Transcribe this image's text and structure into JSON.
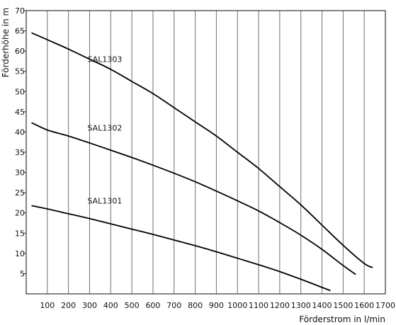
{
  "chart_data": {
    "type": "line",
    "title": "",
    "xlabel": "Förderstrom in l/min",
    "ylabel": "Förderhöhe in m",
    "xlim": [
      0,
      1700
    ],
    "ylim": [
      0,
      70
    ],
    "xticks": [
      100,
      200,
      300,
      400,
      500,
      600,
      700,
      800,
      900,
      1000,
      1100,
      1200,
      1300,
      1400,
      1500,
      1600,
      1700
    ],
    "yticks": [
      5,
      10,
      15,
      20,
      25,
      30,
      35,
      40,
      45,
      50,
      55,
      60,
      65,
      70
    ],
    "grid": "vertical",
    "series": [
      {
        "name": "SAL1303",
        "x": [
          25,
          100,
          200,
          300,
          400,
          500,
          600,
          700,
          800,
          900,
          1000,
          1100,
          1200,
          1300,
          1400,
          1500,
          1600,
          1640
        ],
        "y": [
          64.5,
          62.8,
          60.5,
          58,
          55.5,
          52.5,
          49.5,
          46,
          42.5,
          39,
          35,
          31,
          26.5,
          22,
          17,
          12,
          7.5,
          6.5
        ]
      },
      {
        "name": "SAL1302",
        "x": [
          25,
          100,
          200,
          300,
          400,
          500,
          600,
          700,
          800,
          900,
          1000,
          1100,
          1200,
          1300,
          1400,
          1500,
          1560
        ],
        "y": [
          42.3,
          40.5,
          39,
          37.3,
          35.5,
          33.7,
          31.8,
          29.8,
          27.7,
          25.4,
          23,
          20.5,
          17.6,
          14.5,
          11,
          7,
          4.8
        ]
      },
      {
        "name": "SAL1301",
        "x": [
          25,
          100,
          200,
          300,
          400,
          500,
          600,
          700,
          800,
          900,
          1000,
          1100,
          1200,
          1300,
          1400,
          1440
        ],
        "y": [
          21.8,
          21,
          19.8,
          18.6,
          17.3,
          16,
          14.7,
          13.3,
          11.9,
          10.4,
          8.8,
          7.2,
          5.5,
          3.6,
          1.6,
          0.8
        ]
      }
    ]
  }
}
